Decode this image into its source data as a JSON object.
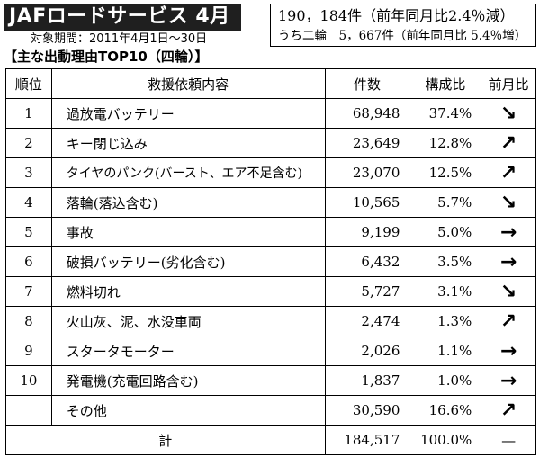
{
  "header": {
    "title": "JAFロードサービス  4月",
    "period": "対象期間：2011年4月1日〜30日",
    "summary_line1": "190，184件（前年同月比2.4％減）",
    "summary_line2": "うち二輪　5，667件（前年同月比 5.4％増）",
    "section_heading": "【主な出動理由TOP10（四輪）】"
  },
  "table": {
    "headers": [
      "順位",
      "救援依頼内容",
      "件数",
      "構成比",
      "前月比"
    ],
    "rows": [
      {
        "rank": "1",
        "reason": "過放電バッテリー",
        "count": "68,948",
        "ratio": "37.4%",
        "trend": "↘"
      },
      {
        "rank": "2",
        "reason": "キー閉じ込み",
        "count": "23,649",
        "ratio": "12.8%",
        "trend": "↗"
      },
      {
        "rank": "3",
        "reason": "タイヤのパンク(バースト、エア不足含む)",
        "count": "23,070",
        "ratio": "12.5%",
        "trend": "↗"
      },
      {
        "rank": "4",
        "reason": "落輪(落込含む)",
        "count": "10,565",
        "ratio": "5.7%",
        "trend": "↘"
      },
      {
        "rank": "5",
        "reason": "事故",
        "count": "9,199",
        "ratio": "5.0%",
        "trend": "→"
      },
      {
        "rank": "6",
        "reason": "破損バッテリー(劣化含む)",
        "count": "6,432",
        "ratio": "3.5%",
        "trend": "→"
      },
      {
        "rank": "7",
        "reason": "燃料切れ",
        "count": "5,727",
        "ratio": "3.1%",
        "trend": "↘"
      },
      {
        "rank": "8",
        "reason": "火山灰、泥、水没車両",
        "count": "2,474",
        "ratio": "1.3%",
        "trend": "↗"
      },
      {
        "rank": "9",
        "reason": "スタータモーター",
        "count": "2,026",
        "ratio": "1.1%",
        "trend": "→"
      },
      {
        "rank": "10",
        "reason": "発電機(充電回路含む)",
        "count": "1,837",
        "ratio": "1.0%",
        "trend": "→"
      },
      {
        "rank": "",
        "reason": "その他",
        "count": "30,590",
        "ratio": "16.6%",
        "trend": "↗"
      }
    ],
    "total": {
      "label": "計",
      "count": "184,517",
      "ratio": "100.0%",
      "trend": "—"
    }
  }
}
